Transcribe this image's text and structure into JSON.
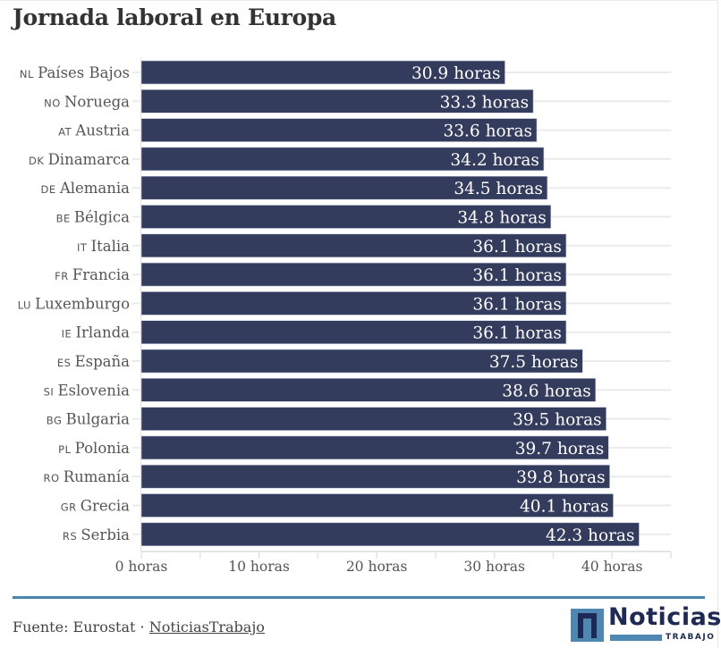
{
  "header": {
    "title": "Jornada laboral en Europa"
  },
  "colors": {
    "bar": "#343c5e",
    "bar_label": "#ffffff",
    "gridline": "#ebebeb",
    "axis_text": "#555555",
    "category_text": "#555555",
    "footer_rule": "#4a86b0",
    "brand_dark": "#1e2a55",
    "brand_light": "#4f87b3"
  },
  "chart_data": {
    "type": "bar",
    "orientation": "horizontal",
    "title": "Jornada laboral en Europa",
    "xlabel": "",
    "ylabel": "",
    "unit_suffix": " horas",
    "xlim": [
      0,
      45
    ],
    "x_ticks": [
      0,
      5,
      10,
      15,
      20,
      25,
      30,
      35,
      40,
      45
    ],
    "x_tick_labels": [
      {
        "value": 0,
        "label": "0 horas"
      },
      {
        "value": 10,
        "label": "10 horas"
      },
      {
        "value": 20,
        "label": "20 horas"
      },
      {
        "value": 30,
        "label": "30 horas"
      },
      {
        "value": 40,
        "label": "40 horas"
      }
    ],
    "grid": true,
    "legend": "none",
    "categories": [
      {
        "code": "NL",
        "name": "Países Bajos"
      },
      {
        "code": "NO",
        "name": "Noruega"
      },
      {
        "code": "AT",
        "name": "Austria"
      },
      {
        "code": "DK",
        "name": "Dinamarca"
      },
      {
        "code": "DE",
        "name": "Alemania"
      },
      {
        "code": "BE",
        "name": "Bélgica"
      },
      {
        "code": "IT",
        "name": "Italia"
      },
      {
        "code": "FR",
        "name": "Francia"
      },
      {
        "code": "LU",
        "name": "Luxemburgo"
      },
      {
        "code": "IE",
        "name": "Irlanda"
      },
      {
        "code": "ES",
        "name": "España"
      },
      {
        "code": "SI",
        "name": "Eslovenia"
      },
      {
        "code": "BG",
        "name": "Bulgaria"
      },
      {
        "code": "PL",
        "name": "Polonia"
      },
      {
        "code": "RO",
        "name": "Rumanía"
      },
      {
        "code": "GR",
        "name": "Grecia"
      },
      {
        "code": "RS",
        "name": "Serbia"
      }
    ],
    "values": [
      30.9,
      33.3,
      33.6,
      34.2,
      34.5,
      34.8,
      36.1,
      36.1,
      36.1,
      36.1,
      37.5,
      38.6,
      39.5,
      39.7,
      39.8,
      40.1,
      42.3
    ],
    "value_labels": [
      "30.9 horas",
      "33.3 horas",
      "33.6 horas",
      "34.2 horas",
      "34.5 horas",
      "34.8 horas",
      "36.1 horas",
      "36.1 horas",
      "36.1 horas",
      "36.1 horas",
      "37.5 horas",
      "38.6 horas",
      "39.5 horas",
      "39.7 horas",
      "39.8 horas",
      "40.1 horas",
      "42.3 horas"
    ]
  },
  "footer": {
    "source_prefix": "Fuente: Eurostat · ",
    "source_link": "NoticiasTrabajo",
    "logo_word": "Noticias",
    "logo_sub": "TRABAJO"
  }
}
